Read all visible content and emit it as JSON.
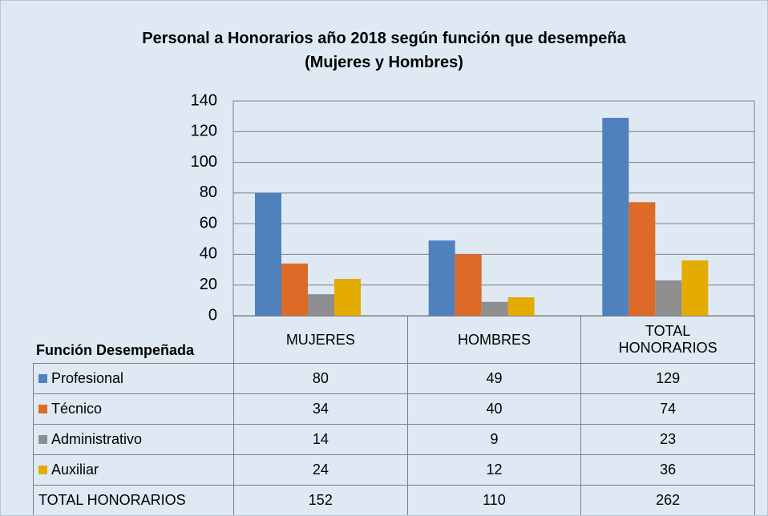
{
  "chart_data": {
    "type": "bar",
    "title": "Personal a Honorarios año 2018 según función que desempeña",
    "subtitle": "(Mujeres y Hombres)",
    "table_header": "Función Desempeñada",
    "categories": [
      "MUJERES",
      "HOMBRES",
      "TOTAL HONORARIOS"
    ],
    "series": [
      {
        "name": "Profesional",
        "color": "#4f81bd",
        "values": [
          80,
          49,
          129
        ]
      },
      {
        "name": "Técnico",
        "color": "#dd6b27",
        "values": [
          34,
          40,
          74
        ]
      },
      {
        "name": "Administrativo",
        "color": "#8e8e8e",
        "values": [
          14,
          9,
          23
        ]
      },
      {
        "name": "Auxiliar",
        "color": "#e4ab00",
        "values": [
          24,
          12,
          36
        ]
      }
    ],
    "totals": {
      "name": "TOTAL HONORARIOS",
      "values": [
        152,
        110,
        262
      ]
    },
    "ylim": [
      0,
      140
    ],
    "yticks": [
      0,
      20,
      40,
      60,
      80,
      100,
      120,
      140
    ],
    "grid": true
  }
}
